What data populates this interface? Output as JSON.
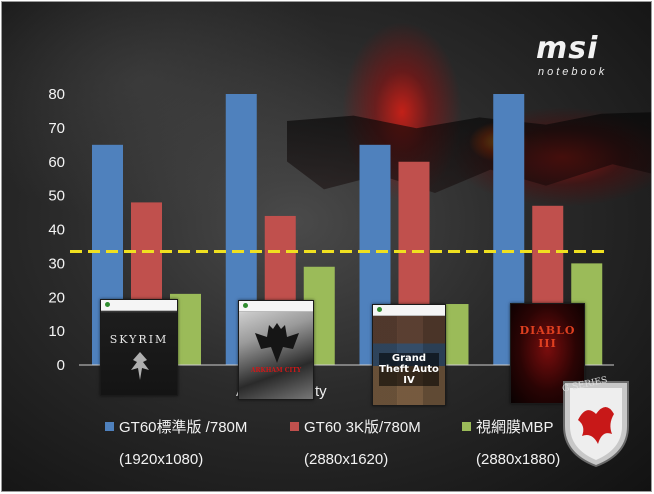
{
  "brand": {
    "logo": "msi",
    "subtitle": "notebook"
  },
  "chart_data": {
    "type": "bar",
    "categories": [
      "Skyrim",
      "Batman: Arkham City",
      "GTA IV",
      "Diablo III"
    ],
    "series": [
      {
        "name": "GT60標準版 /780M",
        "resolution": "(1920x1080)",
        "color": "#4f81bd",
        "values": [
          65,
          80,
          65,
          80
        ]
      },
      {
        "name": "GT60 3K版/780M",
        "resolution": "(2880x1620)",
        "color": "#c0504d",
        "values": [
          48,
          44,
          60,
          47
        ]
      },
      {
        "name": "視網膜MBP",
        "resolution": "(2880x1880)",
        "color": "#9bbb59",
        "values": [
          21,
          29,
          18,
          30
        ]
      }
    ],
    "ylim": [
      0,
      80
    ],
    "yticks": [
      0,
      10,
      20,
      30,
      40,
      50,
      60,
      70,
      80
    ],
    "reference_line": {
      "value": 33.5,
      "color": "#f0e020",
      "style": "dashed"
    },
    "visible_category_label_fragments": [
      "A",
      "ty"
    ],
    "grid": false,
    "legend": "bottom"
  },
  "covers": [
    {
      "name": "skyrim-cover",
      "title": "SKYRIM",
      "header": "Games for Windows"
    },
    {
      "name": "batman-cover",
      "title": "ARKHAM CITY",
      "header": "Games for Windows"
    },
    {
      "name": "gta-cover",
      "title": "Grand Theft Auto IV",
      "header": "Games for Windows"
    },
    {
      "name": "diablo-cover",
      "title": "DIABLO III",
      "header": ""
    }
  ],
  "badge": {
    "text": "G SERIES"
  }
}
